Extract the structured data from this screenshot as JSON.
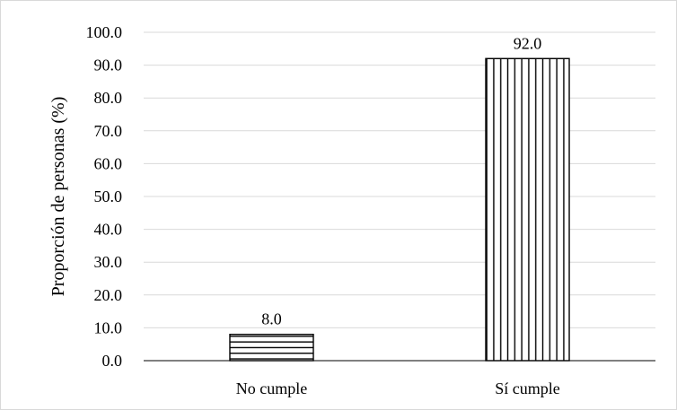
{
  "chart_data": {
    "type": "bar",
    "title": "",
    "xlabel": "",
    "ylabel": "Proporción de personas (%)",
    "categories": [
      "No cumple",
      "Sí cumple"
    ],
    "values": [
      8.0,
      92.0
    ],
    "data_labels": [
      "8.0",
      "92.0"
    ],
    "ylim": [
      0,
      100
    ],
    "ytick_step": 10,
    "ytick_labels": [
      "0.0",
      "10.0",
      "20.0",
      "30.0",
      "40.0",
      "50.0",
      "60.0",
      "70.0",
      "80.0",
      "90.0",
      "100.0"
    ],
    "grid": true,
    "legend": "none",
    "bar_patterns": [
      "horizontal-lines",
      "vertical-lines"
    ],
    "colors": {
      "grid": "#d9d9d9",
      "axis": "#000000",
      "bar_fill": "#ffffff",
      "bar_stroke": "#000000",
      "frame": "#d9d9d9"
    }
  }
}
